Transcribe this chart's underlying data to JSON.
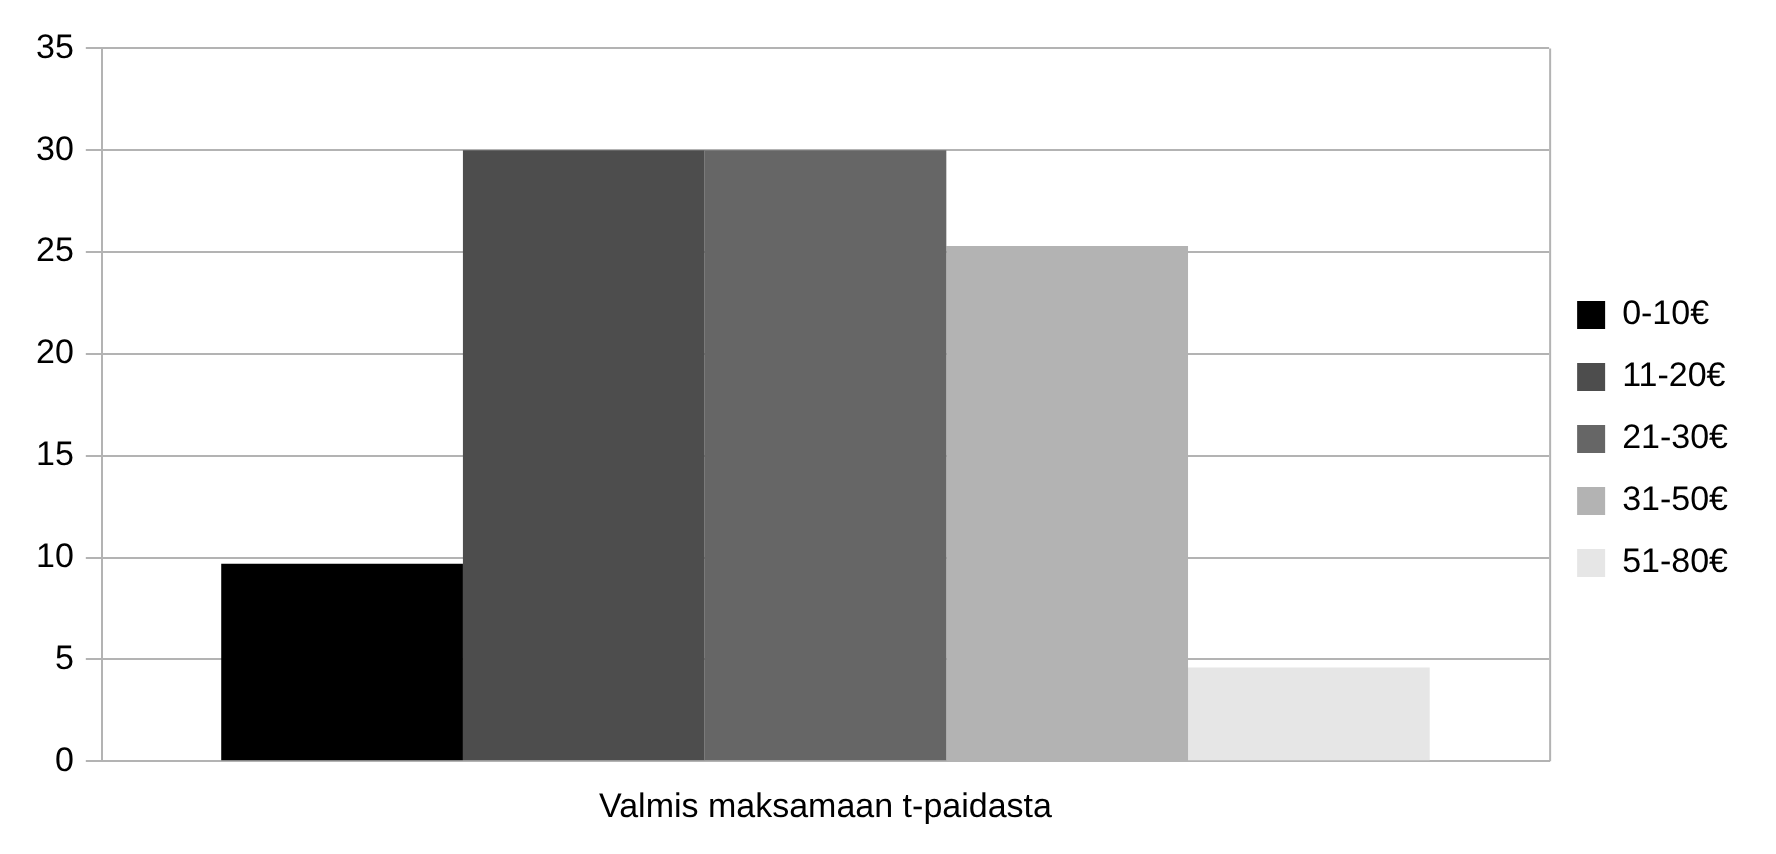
{
  "chart_data": {
    "type": "bar",
    "categories": [
      "Valmis maksamaan t-paidasta"
    ],
    "series": [
      {
        "name": "0-10€",
        "color": "#000000",
        "values": [
          9.7
        ]
      },
      {
        "name": "11-20€",
        "color": "#4d4d4d",
        "values": [
          30
        ]
      },
      {
        "name": "21-30€",
        "color": "#666666",
        "values": [
          30
        ]
      },
      {
        "name": "31-50€",
        "color": "#b3b3b3",
        "values": [
          25.3
        ]
      },
      {
        "name": "51-80€",
        "color": "#e6e6e6",
        "values": [
          4.6
        ]
      }
    ],
    "ylim": [
      0,
      35
    ],
    "yticks": [
      0,
      5,
      10,
      15,
      20,
      25,
      30,
      35
    ],
    "grid": "y",
    "legend": "right"
  }
}
